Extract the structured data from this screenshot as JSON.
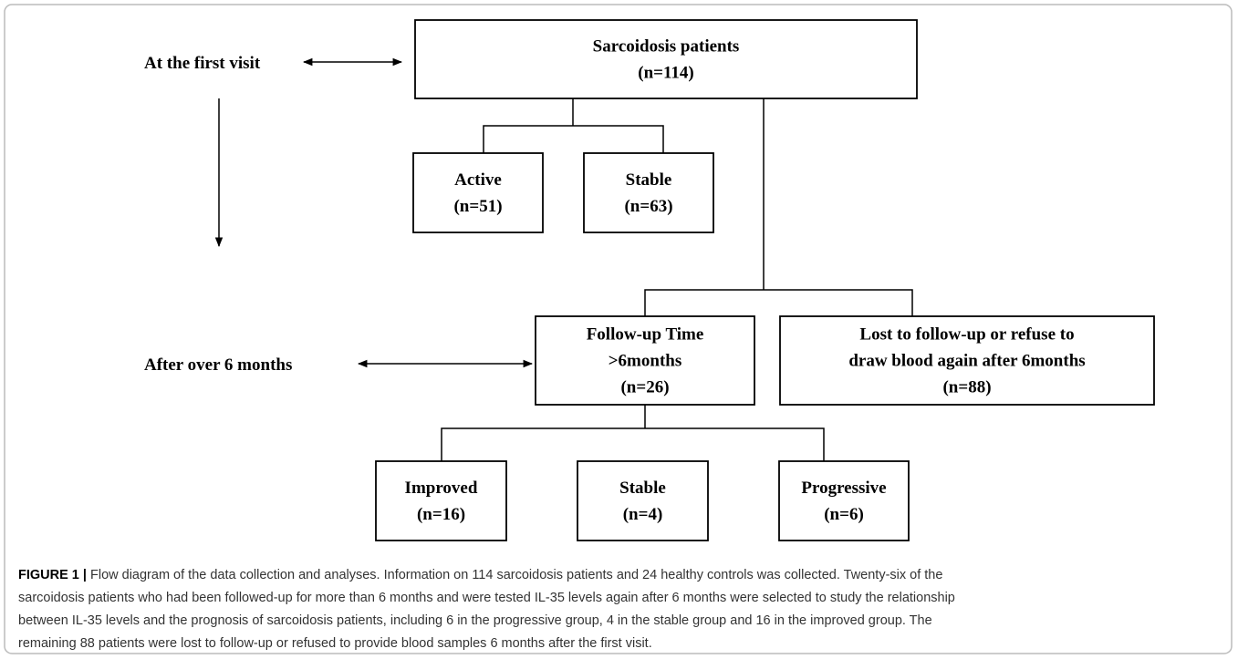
{
  "side_labels": [
    "At the first visit",
    "After over 6 months"
  ],
  "nodes": [
    {
      "lines": [
        "Sarcoidosis patients",
        "(n=114)"
      ]
    },
    {
      "lines": [
        "Active",
        "(n=51)"
      ]
    },
    {
      "lines": [
        "Stable",
        "(n=63)"
      ]
    },
    {
      "lines": [
        "Follow-up Time",
        ">6months",
        "(n=26)"
      ]
    },
    {
      "lines": [
        "Lost to follow-up or refuse to",
        "draw blood again after 6months",
        "(n=88)"
      ]
    },
    {
      "lines": [
        "Improved",
        "(n=16)"
      ]
    },
    {
      "lines": [
        "Stable",
        "(n=4)"
      ]
    },
    {
      "lines": [
        "Progressive",
        "(n=6)"
      ]
    }
  ],
  "caption": {
    "label": "FIGURE 1 |",
    "lines": [
      " Flow diagram of the data collection and analyses. Information on 114 sarcoidosis patients and 24 healthy controls was collected. Twenty-six of the",
      "sarcoidosis patients who had been followed-up for more than 6 months and were tested IL-35 levels again after 6 months were selected to study the relationship",
      "between IL-35 levels and the prognosis of sarcoidosis patients, including 6 in the progressive group, 4 in the stable group and 16 in the improved group. The",
      "remaining 88 patients were lost to follow-up or refused to provide blood samples 6 months after the first visit."
    ]
  }
}
